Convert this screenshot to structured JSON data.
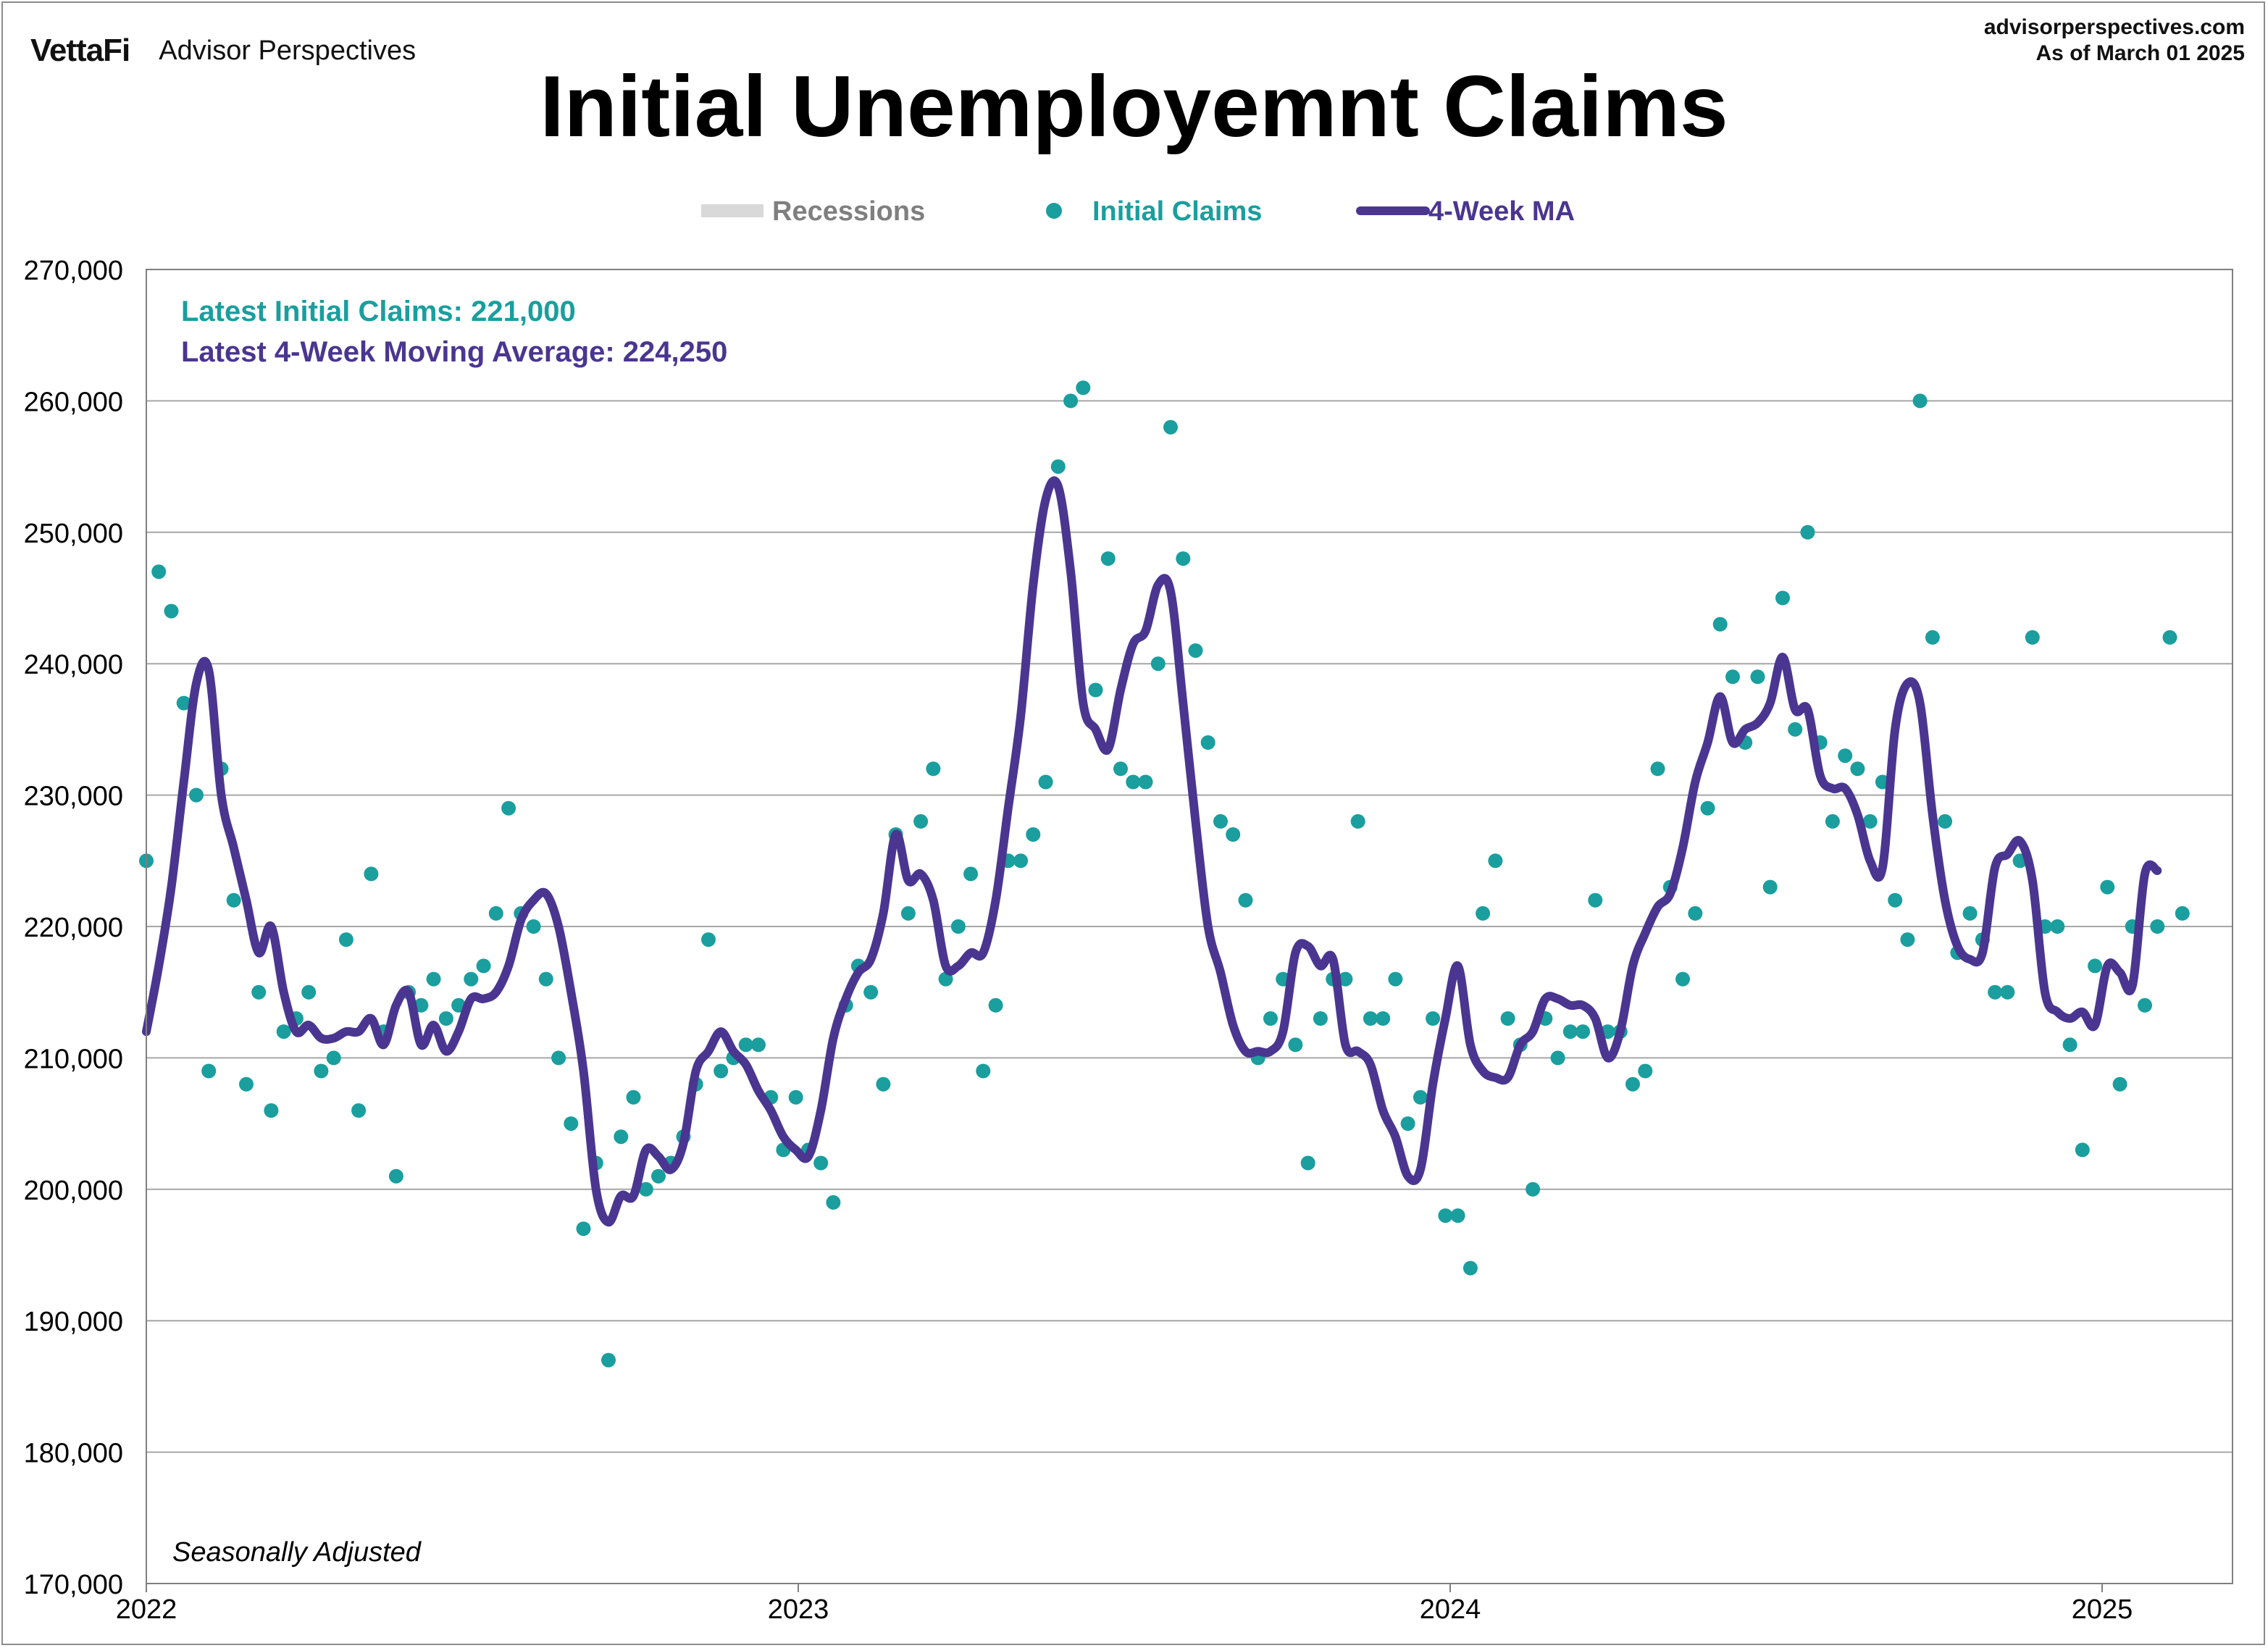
{
  "header": {
    "logo": "VettaFi",
    "brand": "Advisor Perspectives",
    "site": "advisorperspectives.com",
    "as_of": "As of March 01 2025"
  },
  "colors": {
    "claims": "#1a9e9e",
    "ma": "#4a3690",
    "recession": "#d9d9d9",
    "grid": "#a6a6a6",
    "axis_text": "#000000"
  },
  "chart_data": {
    "type": "line",
    "title": "Initial Unemployemnt Claims",
    "legend": [
      "Recessions",
      "Initial Claims",
      "4-Week MA"
    ],
    "legend_position": "top-center",
    "annotations": {
      "latest_claims": "Latest Initial Claims: 221,000",
      "latest_ma": "Latest 4-Week Moving Average: 224,250",
      "note": "Seasonally Adjusted"
    },
    "ylim": [
      170000,
      270000
    ],
    "yticks": [
      170000,
      180000,
      190000,
      200000,
      210000,
      220000,
      230000,
      240000,
      250000,
      260000,
      270000
    ],
    "ytick_labels": [
      "170,000",
      "180,000",
      "190,000",
      "200,000",
      "210,000",
      "220,000",
      "230,000",
      "240,000",
      "250,000",
      "260,000",
      "270,000"
    ],
    "xlim": [
      2022.0,
      2025.2
    ],
    "xticks": [
      2022,
      2023,
      2024,
      2025
    ],
    "xtick_labels": [
      "2022",
      "2023",
      "2024",
      "2025"
    ],
    "grid": true,
    "series": [
      {
        "name": "Initial Claims",
        "style": "scatter",
        "x_start": 2022.0,
        "x_step": 0.01916,
        "values": [
          225000,
          247000,
          244000,
          237000,
          230000,
          209000,
          232000,
          222000,
          208000,
          215000,
          206000,
          212000,
          213000,
          215000,
          209000,
          210000,
          219000,
          206000,
          224000,
          212000,
          201000,
          215000,
          214000,
          216000,
          213000,
          214000,
          216000,
          217000,
          221000,
          229000,
          221000,
          220000,
          216000,
          210000,
          205000,
          197000,
          202000,
          187000,
          204000,
          207000,
          200000,
          201000,
          202000,
          204000,
          208000,
          219000,
          209000,
          210000,
          211000,
          211000,
          207000,
          203000,
          207000,
          203000,
          202000,
          199000,
          214000,
          217000,
          215000,
          208000,
          227000,
          221000,
          228000,
          232000,
          216000,
          220000,
          224000,
          209000,
          214000,
          225000,
          225000,
          227000,
          231000,
          255000,
          260000,
          261000,
          238000,
          248000,
          232000,
          231000,
          231000,
          240000,
          258000,
          248000,
          241000,
          234000,
          228000,
          227000,
          222000,
          210000,
          213000,
          216000,
          211000,
          202000,
          213000,
          216000,
          216000,
          228000,
          213000,
          213000,
          216000,
          205000,
          207000,
          213000,
          198000,
          198000,
          194000,
          221000,
          225000,
          213000,
          211000,
          200000,
          213000,
          210000,
          212000,
          212000,
          222000,
          212000,
          212000,
          208000,
          209000,
          232000,
          223000,
          216000,
          221000,
          229000,
          243000,
          239000,
          234000,
          239000,
          223000,
          245000,
          235000,
          250000,
          234000,
          228000,
          233000,
          232000,
          228000,
          231000,
          222000,
          219000,
          260000,
          242000,
          228000,
          218000,
          221000,
          219000,
          215000,
          215000,
          225000,
          242000,
          220000,
          220000,
          211000,
          203000,
          217000,
          223000,
          208000,
          220000,
          214000,
          220000,
          242000,
          221000
        ]
      },
      {
        "name": "4-Week MA",
        "style": "line",
        "x_start": 2022.0,
        "x_step": 0.01916,
        "values": [
          212000,
          217000,
          223000,
          231000,
          238500,
          239500,
          230000,
          226000,
          222000,
          218000,
          220000,
          215000,
          212000,
          212500,
          211500,
          211500,
          212000,
          212000,
          213000,
          211000,
          214000,
          215000,
          211000,
          212500,
          210500,
          212000,
          214500,
          214500,
          215000,
          217000,
          220500,
          222000,
          222500,
          220000,
          215000,
          209000,
          200000,
          197500,
          199500,
          199500,
          203000,
          202500,
          201500,
          203500,
          209000,
          210500,
          212000,
          210500,
          209500,
          207500,
          206000,
          204000,
          203000,
          202500,
          206000,
          211500,
          214500,
          216500,
          217500,
          221000,
          227000,
          223500,
          224000,
          222000,
          217000,
          217000,
          218000,
          218000,
          222000,
          229000,
          236000,
          246000,
          252500,
          253500,
          247000,
          237000,
          235000,
          233500,
          238000,
          241500,
          242500,
          246000,
          245500,
          237000,
          228000,
          220000,
          216500,
          212500,
          210500,
          210500,
          210500,
          212000,
          218000,
          218500,
          217000,
          217500,
          211000,
          210500,
          209500,
          206000,
          204000,
          201000,
          201500,
          208000,
          213000,
          217000,
          211000,
          209000,
          208500,
          208500,
          211000,
          212000,
          214500,
          214500,
          214000,
          214000,
          213000,
          210000,
          212000,
          217000,
          219500,
          221500,
          222500,
          226000,
          231000,
          234000,
          237500,
          234000,
          235000,
          235500,
          237000,
          240500,
          236500,
          236500,
          231500,
          230500,
          230500,
          228500,
          225000,
          224500,
          235000,
          238500,
          237000,
          228500,
          222000,
          218500,
          217500,
          218000,
          224500,
          225500,
          226500,
          223500,
          215000,
          213500,
          213000,
          213500,
          212500,
          217000,
          216500,
          215500,
          224000,
          224250
        ]
      },
      {
        "name": "Recessions",
        "style": "band",
        "ranges": []
      }
    ]
  }
}
